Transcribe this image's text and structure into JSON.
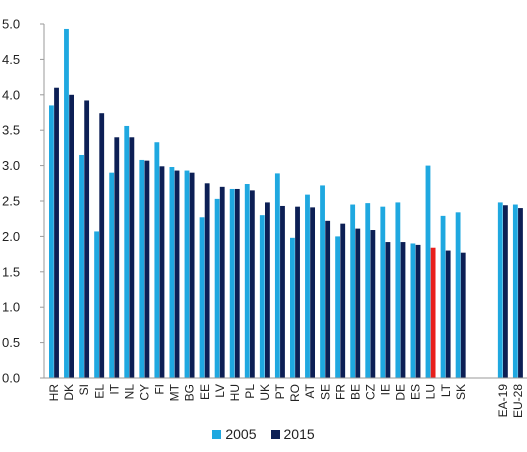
{
  "chart_data": {
    "type": "bar",
    "ylim": [
      0,
      5
    ],
    "yticks": [
      "0.0",
      "0.5",
      "1.0",
      "1.5",
      "2.0",
      "2.5",
      "3.0",
      "3.5",
      "4.0",
      "4.5",
      "5.0"
    ],
    "grid": false,
    "legend_position": "bottom-center",
    "categories": [
      "HR",
      "DK",
      "SI",
      "EL",
      "IT",
      "NL",
      "CY",
      "FI",
      "MT",
      "BG",
      "EE",
      "LV",
      "HU",
      "PL",
      "UK",
      "PT",
      "RO",
      "AT",
      "SE",
      "FR",
      "BE",
      "CZ",
      "IE",
      "DE",
      "ES",
      "LU",
      "LT",
      "SK",
      "EA-19",
      "EU-28"
    ],
    "gap_after": "SK",
    "highlight": {
      "category": "LU",
      "series": "2015",
      "color": "#e8201c"
    },
    "series": [
      {
        "name": "2005",
        "color": "#1fa8e0",
        "values": [
          3.85,
          4.93,
          3.15,
          2.07,
          2.9,
          3.56,
          3.08,
          3.33,
          2.98,
          2.93,
          2.27,
          2.53,
          2.67,
          2.74,
          2.3,
          2.89,
          1.98,
          2.59,
          2.72,
          2.0,
          2.45,
          2.47,
          2.42,
          2.48,
          1.9,
          3.0,
          2.29,
          2.34,
          2.48,
          2.45
        ]
      },
      {
        "name": "2015",
        "color": "#0c1f55",
        "values": [
          4.1,
          4.0,
          3.92,
          3.74,
          3.4,
          3.4,
          3.07,
          2.99,
          2.93,
          2.9,
          2.75,
          2.7,
          2.67,
          2.65,
          2.48,
          2.43,
          2.42,
          2.41,
          2.22,
          2.18,
          2.11,
          2.09,
          1.92,
          1.92,
          1.88,
          1.84,
          1.8,
          1.77,
          2.44,
          2.4
        ]
      }
    ]
  }
}
